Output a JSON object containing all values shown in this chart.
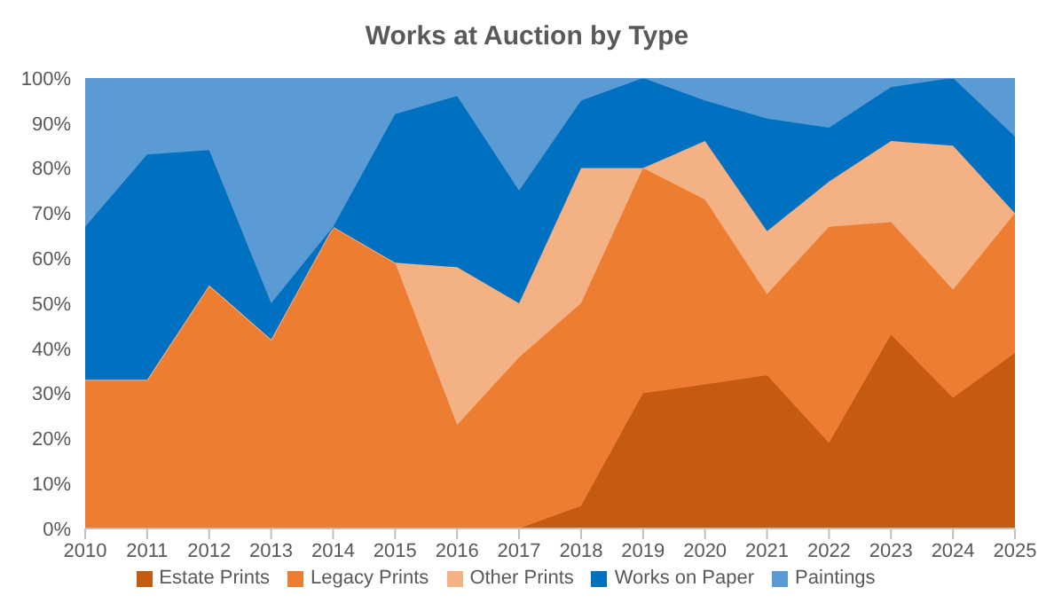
{
  "chart_data": {
    "type": "area",
    "title": "Works at Auction by Type",
    "stacked": true,
    "categories": [
      "2010",
      "2011",
      "2012",
      "2013",
      "2014",
      "2015",
      "2016",
      "2017",
      "2018",
      "2019",
      "2020",
      "2021",
      "2022",
      "2023",
      "2024",
      "2025"
    ],
    "series": [
      {
        "name": "Estate Prints",
        "color": "#c55a11",
        "values": [
          0,
          0,
          0,
          0,
          0,
          0,
          0,
          0,
          5,
          30,
          32,
          34,
          19,
          43,
          29,
          39
        ]
      },
      {
        "name": "Legacy Prints",
        "color": "#ed7d31",
        "values": [
          33,
          33,
          54,
          42,
          67,
          59,
          23,
          38,
          45,
          50,
          41,
          18,
          48,
          25,
          24,
          31
        ]
      },
      {
        "name": "Other Prints",
        "color": "#f4b183",
        "values": [
          0,
          0,
          0,
          0,
          0,
          0,
          35,
          12,
          30,
          0,
          13,
          14,
          10,
          18,
          32,
          0
        ]
      },
      {
        "name": "Works on Paper",
        "color": "#0070c0",
        "values": [
          34,
          50,
          30,
          8,
          0,
          33,
          38,
          25,
          15,
          20,
          9,
          25,
          12,
          12,
          15,
          17
        ]
      },
      {
        "name": "Paintings",
        "color": "#5b9bd5",
        "values": [
          33,
          17,
          16,
          50,
          33,
          8,
          4,
          25,
          5,
          0,
          5,
          9,
          11,
          2,
          0,
          13
        ]
      }
    ],
    "ylim": [
      0,
      100
    ],
    "yticks": [
      {
        "value": 0,
        "label": "0%"
      },
      {
        "value": 10,
        "label": "10%"
      },
      {
        "value": 20,
        "label": "20%"
      },
      {
        "value": 30,
        "label": "30%"
      },
      {
        "value": 40,
        "label": "40%"
      },
      {
        "value": 50,
        "label": "50%"
      },
      {
        "value": 60,
        "label": "60%"
      },
      {
        "value": 70,
        "label": "70%"
      },
      {
        "value": 80,
        "label": "80%"
      },
      {
        "value": 90,
        "label": "90%"
      },
      {
        "value": 100,
        "label": "100%"
      }
    ],
    "legend": "bottom"
  }
}
